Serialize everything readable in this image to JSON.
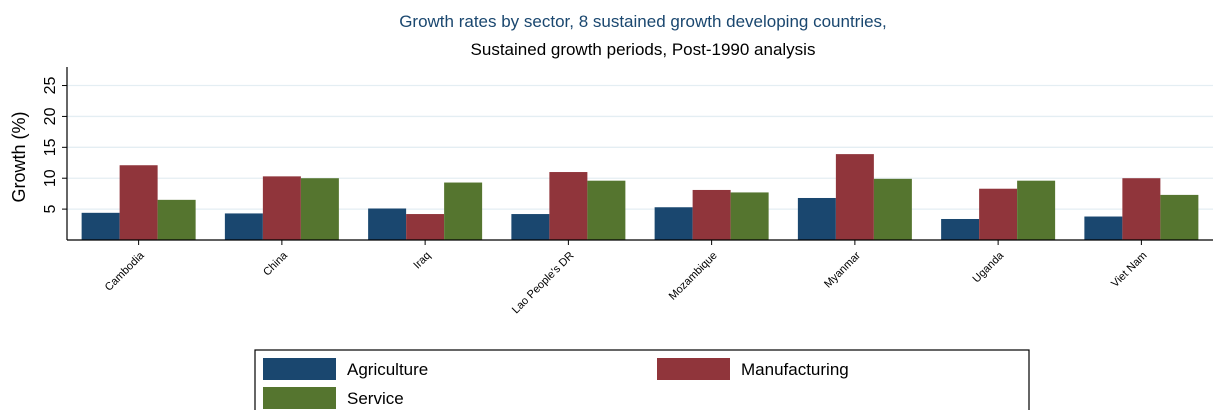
{
  "chart_data": {
    "type": "bar",
    "title": "Growth rates by sector, 8 sustained growth developing countries,",
    "subtitle": "Sustained growth periods, Post-1990 analysis",
    "xlabel": "",
    "ylabel": "Growth (%)",
    "ylim": [
      0,
      28
    ],
    "yticks": [
      5,
      10,
      15,
      20,
      25
    ],
    "grid": true,
    "legend_position": "bottom",
    "categories": [
      "Cambodia",
      "China",
      "Iraq",
      "Lao People's DR",
      "Mozambique",
      "Myanmar",
      "Uganda",
      "Viet Nam"
    ],
    "series": [
      {
        "name": "Agriculture",
        "color": "#1a476f",
        "values": [
          4.4,
          4.3,
          5.1,
          4.2,
          5.3,
          6.8,
          3.4,
          3.8
        ]
      },
      {
        "name": "Manufacturing",
        "color": "#90353b",
        "values": [
          12.1,
          10.3,
          4.2,
          11.0,
          8.1,
          13.9,
          8.3,
          10.0
        ]
      },
      {
        "name": "Service",
        "color": "#55752f",
        "values": [
          6.5,
          10.0,
          9.3,
          9.6,
          7.7,
          9.9,
          9.6,
          7.3
        ]
      }
    ]
  }
}
